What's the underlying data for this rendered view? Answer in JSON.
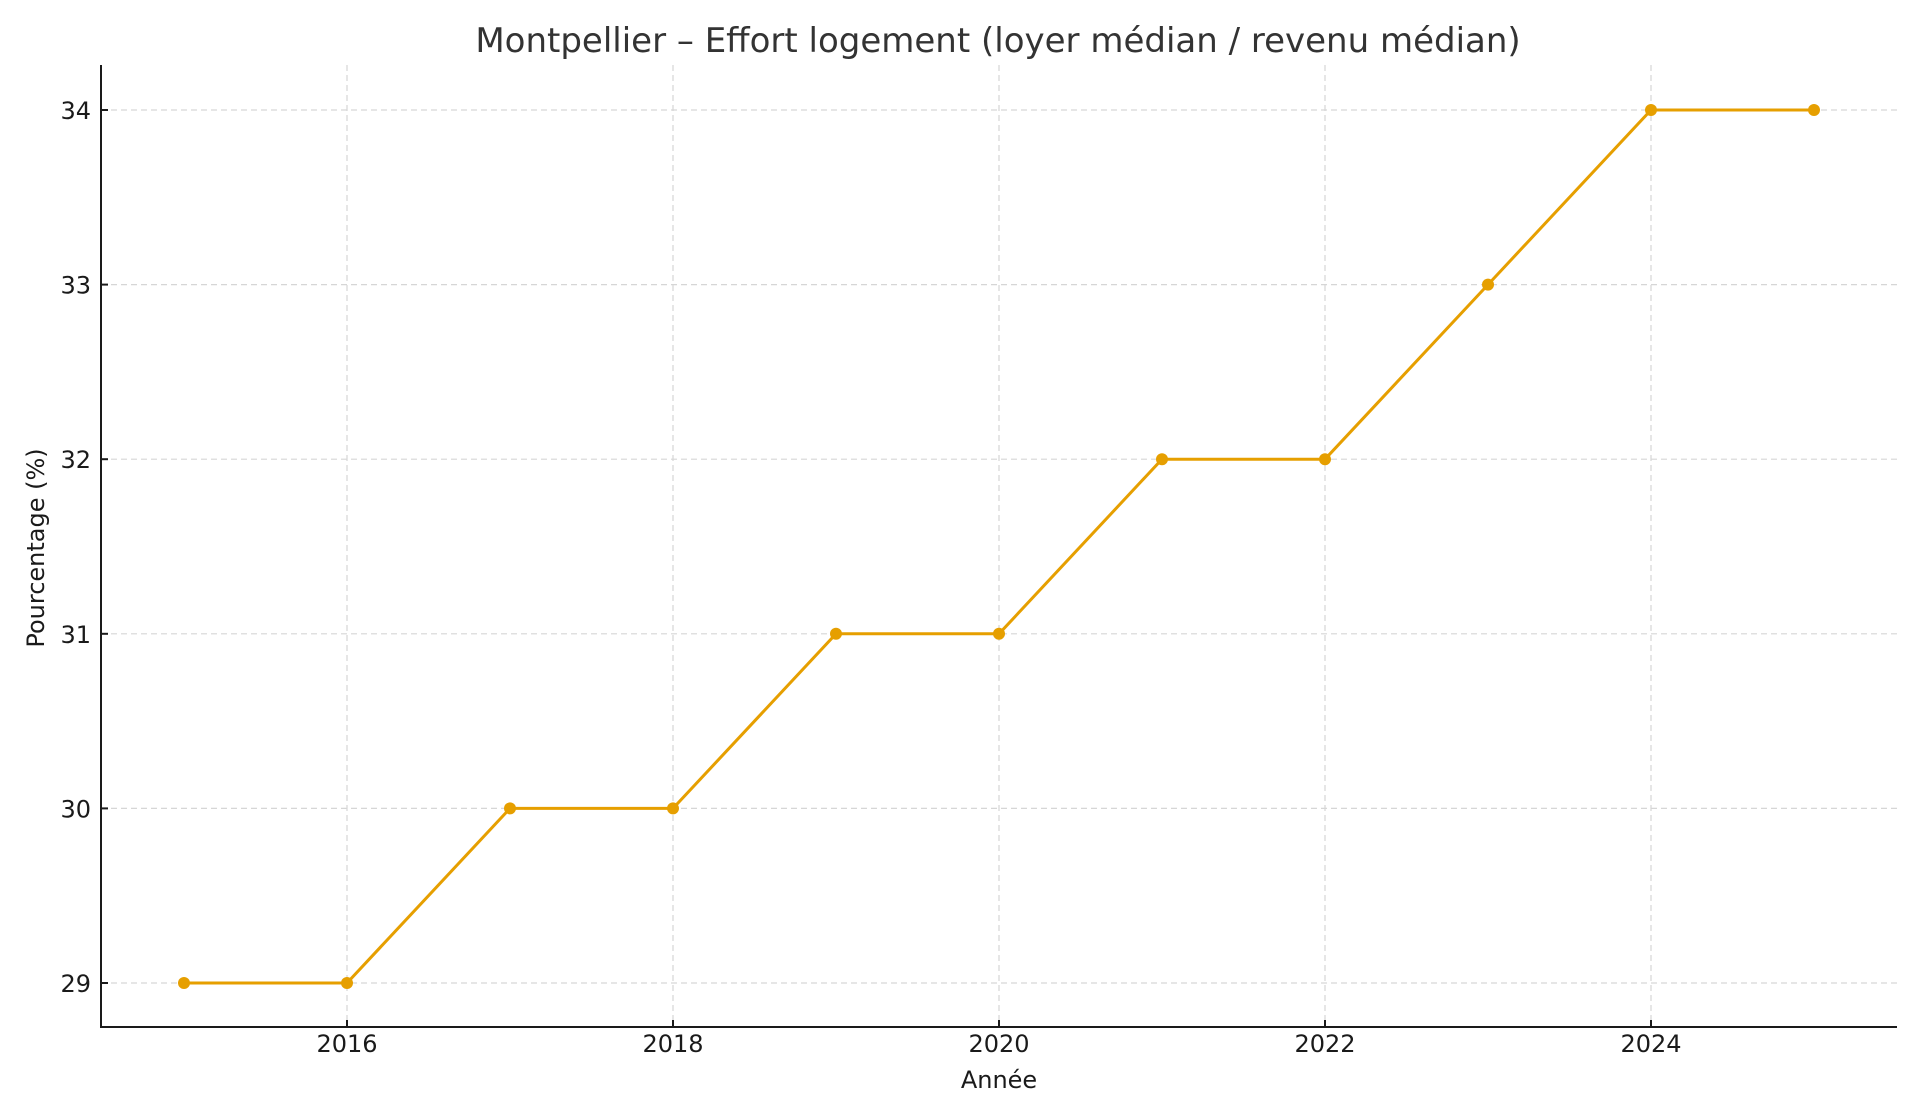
{
  "chart_data": {
    "type": "line",
    "title": "Montpellier – Effort logement (loyer médian / revenu médian)",
    "xlabel": "Année",
    "ylabel": "Pourcentage (%)",
    "x": [
      2015,
      2016,
      2017,
      2018,
      2019,
      2020,
      2021,
      2022,
      2023,
      2024,
      2025
    ],
    "series": [
      {
        "name": "Effort logement",
        "values": [
          29,
          29,
          30,
          30,
          31,
          31,
          32,
          32,
          33,
          34,
          34
        ],
        "color": "#E69F00",
        "marker": "circle"
      }
    ],
    "xticks": [
      "2016",
      "2018",
      "2020",
      "2022",
      "2024"
    ],
    "yticks": [
      "29",
      "30",
      "31",
      "32",
      "33",
      "34"
    ],
    "xlim": [
      2014.5,
      2025.5
    ],
    "ylim": [
      28.75,
      34.25
    ],
    "grid": true,
    "legend": null
  }
}
